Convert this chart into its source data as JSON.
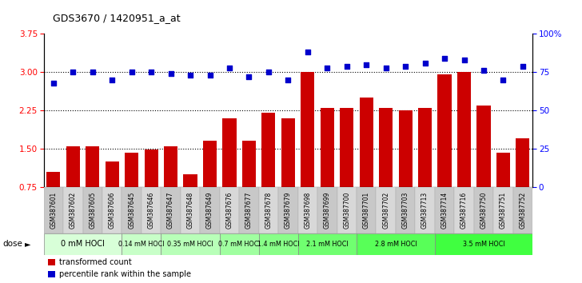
{
  "title": "GDS3670 / 1420951_a_at",
  "samples": [
    "GSM387601",
    "GSM387602",
    "GSM387605",
    "GSM387606",
    "GSM387645",
    "GSM387646",
    "GSM387647",
    "GSM387648",
    "GSM387649",
    "GSM387676",
    "GSM387677",
    "GSM387678",
    "GSM387679",
    "GSM387698",
    "GSM387699",
    "GSM387700",
    "GSM387701",
    "GSM387702",
    "GSM387703",
    "GSM387713",
    "GSM387714",
    "GSM387716",
    "GSM387750",
    "GSM387751",
    "GSM387752"
  ],
  "bar_values": [
    1.05,
    1.55,
    1.55,
    1.25,
    1.42,
    1.48,
    1.55,
    1.0,
    1.65,
    2.1,
    1.65,
    2.2,
    2.1,
    3.0,
    2.3,
    2.3,
    2.5,
    2.3,
    2.25,
    2.3,
    2.95,
    3.0,
    2.35,
    1.42,
    1.7
  ],
  "dot_values_pct": [
    68,
    75,
    75,
    70,
    75,
    75,
    74,
    73,
    73,
    78,
    72,
    75,
    70,
    88,
    78,
    79,
    80,
    78,
    79,
    81,
    84,
    83,
    76,
    70,
    79
  ],
  "dose_groups": [
    {
      "label": "0 mM HOCl",
      "start": 0,
      "end": 4,
      "color": "#d8ffd8"
    },
    {
      "label": "0.14 mM HOCl",
      "start": 4,
      "end": 6,
      "color": "#c8ffc8"
    },
    {
      "label": "0.35 mM HOCl",
      "start": 6,
      "end": 9,
      "color": "#b8ffb8"
    },
    {
      "label": "0.7 mM HOCl",
      "start": 9,
      "end": 11,
      "color": "#a0ffa0"
    },
    {
      "label": "1.4 mM HOCl",
      "start": 11,
      "end": 13,
      "color": "#88ff88"
    },
    {
      "label": "2.1 mM HOCl",
      "start": 13,
      "end": 16,
      "color": "#70ff70"
    },
    {
      "label": "2.8 mM HOCl",
      "start": 16,
      "end": 20,
      "color": "#58ff58"
    },
    {
      "label": "3.5 mM HOCl",
      "start": 20,
      "end": 25,
      "color": "#40ff40"
    }
  ],
  "ymin": 0.75,
  "ymax": 3.75,
  "yticks_left": [
    0.75,
    1.5,
    2.25,
    3.0,
    3.75
  ],
  "yticks_right": [
    0,
    25,
    50,
    75,
    100
  ],
  "bar_color": "#cc0000",
  "dot_color": "#0000cc",
  "background_color": "#ffffff",
  "legend_items": [
    "transformed count",
    "percentile rank within the sample"
  ]
}
